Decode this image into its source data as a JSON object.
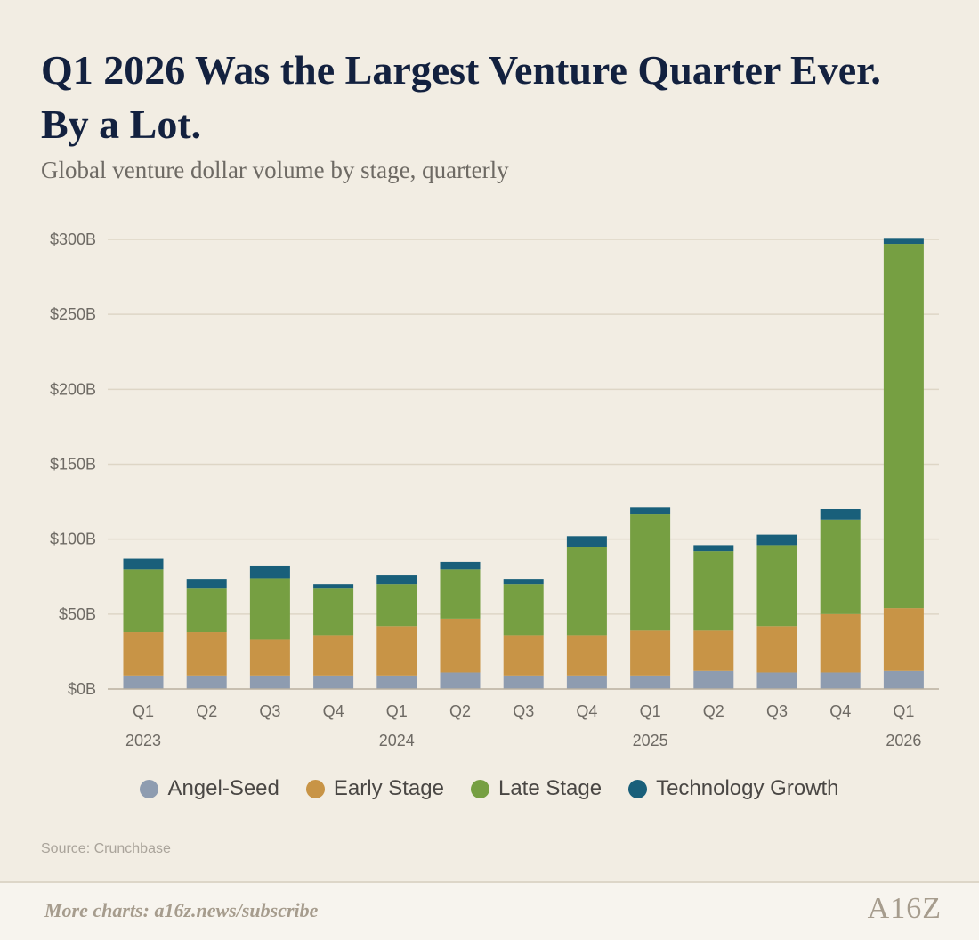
{
  "header": {
    "title_line1": "Q1 2026 Was the Largest Venture Quarter Ever.",
    "title_line2": "By a Lot.",
    "subtitle": "Global venture dollar volume by stage, quarterly"
  },
  "chart_data": {
    "type": "bar",
    "stacked": true,
    "categories": [
      "Q1 2023",
      "Q2 2023",
      "Q3 2023",
      "Q4 2023",
      "Q1 2024",
      "Q2 2024",
      "Q3 2024",
      "Q4 2024",
      "Q1 2025",
      "Q2 2025",
      "Q3 2025",
      "Q4 2025",
      "Q1 2026"
    ],
    "quarter_labels": [
      "Q1",
      "Q2",
      "Q3",
      "Q4",
      "Q1",
      "Q2",
      "Q3",
      "Q4",
      "Q1",
      "Q2",
      "Q3",
      "Q4",
      "Q1"
    ],
    "year_labels": [
      {
        "label": "2023",
        "index": 0
      },
      {
        "label": "2024",
        "index": 4
      },
      {
        "label": "2025",
        "index": 8
      },
      {
        "label": "2026",
        "index": 12
      }
    ],
    "series": [
      {
        "name": "Angel-Seed",
        "color": "#8e9cb0",
        "values": [
          9,
          9,
          9,
          9,
          9,
          11,
          9,
          9,
          9,
          12,
          11,
          11,
          12
        ]
      },
      {
        "name": "Early Stage",
        "color": "#c89446",
        "values": [
          29,
          29,
          24,
          27,
          33,
          36,
          27,
          27,
          30,
          27,
          31,
          39,
          42
        ]
      },
      {
        "name": "Late Stage",
        "color": "#769f42",
        "values": [
          42,
          29,
          41,
          31,
          28,
          33,
          34,
          59,
          78,
          53,
          54,
          63,
          243
        ]
      },
      {
        "name": "Technology Growth",
        "color": "#195f7a",
        "values": [
          7,
          6,
          8,
          3,
          6,
          5,
          3,
          7,
          4,
          4,
          7,
          7,
          4
        ]
      }
    ],
    "ylim": [
      0,
      300
    ],
    "yticks": [
      0,
      50,
      100,
      150,
      200,
      250,
      300
    ],
    "ytick_labels": [
      "$0B",
      "$50B",
      "$100B",
      "$150B",
      "$200B",
      "$250B",
      "$300B"
    ],
    "grid": true,
    "legend_position": "bottom-center"
  },
  "source": "Source: Crunchbase",
  "footer": {
    "text": "More charts: a16z.news/subscribe",
    "logo": "A16Z"
  }
}
